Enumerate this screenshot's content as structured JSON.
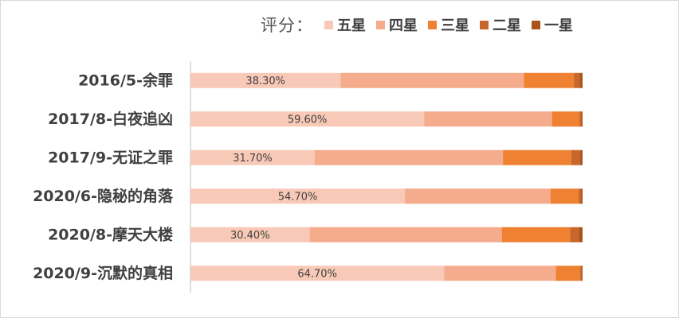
{
  "chart_data": {
    "type": "bar",
    "orientation": "horizontal",
    "stacked": "percent",
    "legend": {
      "title": "评分：",
      "position": "top-right"
    },
    "categories": [
      "2016/5-余罪",
      "2017/8-白夜追凶",
      "2017/9-无证之罪",
      "2020/6-隐秘的角落",
      "2020/8-摩天大楼",
      "2020/9-沉默的真相"
    ],
    "series": [
      {
        "name": "五星",
        "color": "#f8c9b6",
        "values": [
          38.3,
          59.6,
          31.7,
          54.7,
          30.4,
          64.7
        ],
        "labels": [
          "38.30%",
          "59.60%",
          "31.70%",
          "54.70%",
          "30.40%",
          "64.70%"
        ]
      },
      {
        "name": "四星",
        "color": "#f4ac8d",
        "values": [
          46.7,
          32.6,
          48.0,
          37.1,
          49.0,
          28.5
        ]
      },
      {
        "name": "三星",
        "color": "#ef8132",
        "values": [
          12.8,
          7.0,
          17.4,
          7.2,
          17.4,
          6.2
        ]
      },
      {
        "name": "二星",
        "color": "#c8672a",
        "values": [
          1.5,
          0.5,
          2.3,
          0.6,
          2.3,
          0.4
        ]
      },
      {
        "name": "一星",
        "color": "#a9541a",
        "values": [
          0.7,
          0.3,
          0.6,
          0.4,
          0.9,
          0.2
        ]
      }
    ],
    "xlim": [
      0,
      100
    ],
    "grid": false
  }
}
